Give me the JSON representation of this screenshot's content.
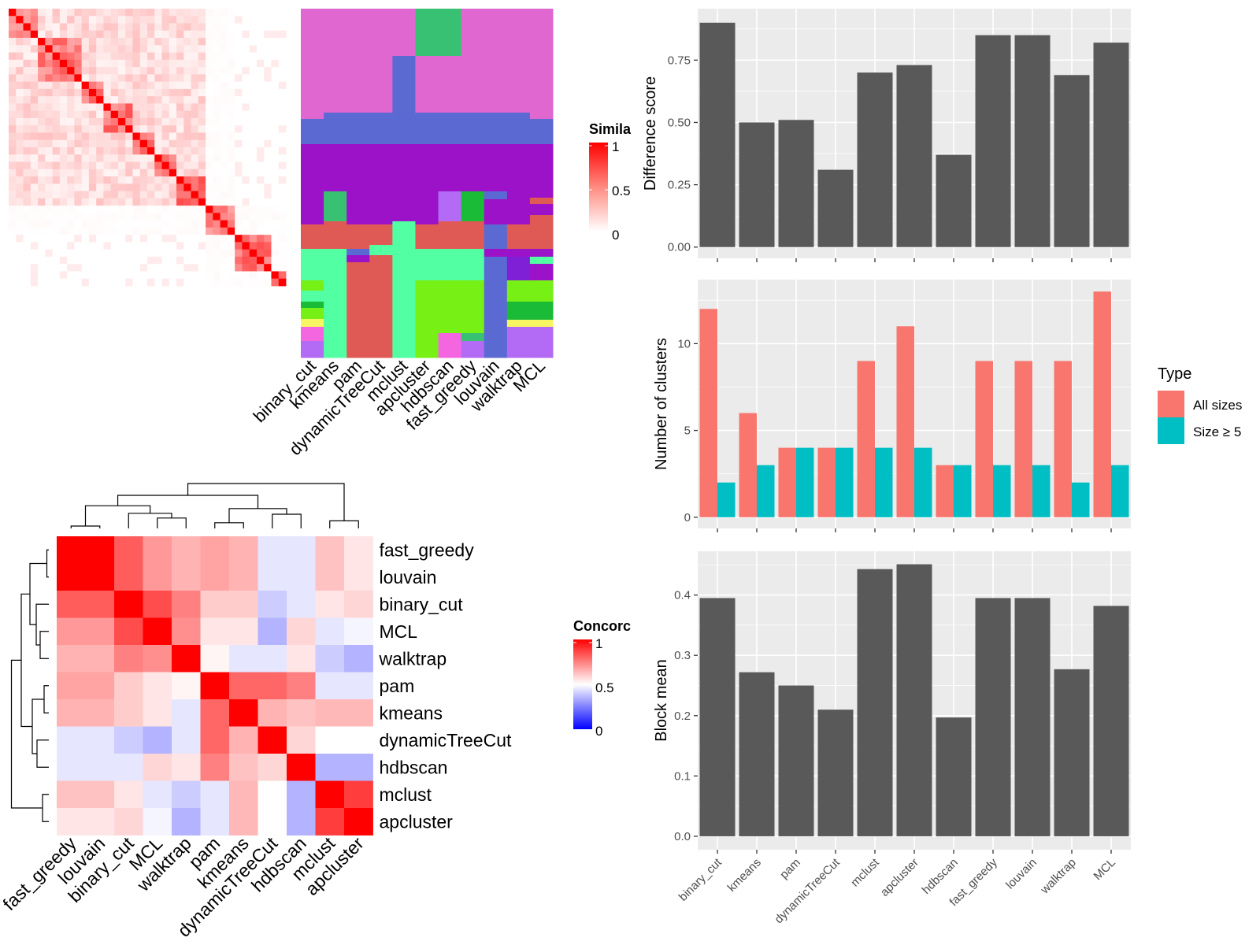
{
  "methods": [
    "binary_cut",
    "kmeans",
    "pam",
    "dynamicTreeCut",
    "mclust",
    "apcluster",
    "hdbscan",
    "fast_greedy",
    "louvain",
    "walktrap",
    "MCL"
  ],
  "colors": {
    "panel_bg": "#ebebeb",
    "grid": "#ffffff",
    "bar_dark": "#595959",
    "all_sizes": "#f8766d",
    "size_ge5": "#00bfc4",
    "heat_high": "#ff0000",
    "heat_mid": "#ffffff",
    "heat_low": "#0000ff"
  },
  "similarity_legend": {
    "title": "Simila",
    "ticks": [
      "1",
      "0.5",
      "0"
    ]
  },
  "concordance_legend": {
    "title": "Concorc",
    "ticks": [
      "1",
      "0.5",
      "0"
    ]
  },
  "top_heatmap": {
    "column_labels": [
      "binary_cut",
      "kmeans",
      "pam",
      "dynamicTreeCut",
      "mclust",
      "apcluster",
      "hdbscan",
      "fast_greedy",
      "louvain",
      "walktrap",
      "MCL"
    ],
    "n_items": 38
  },
  "concordance_heatmap": {
    "order": [
      "fast_greedy",
      "louvain",
      "binary_cut",
      "MCL",
      "walktrap",
      "pam",
      "kmeans",
      "dynamicTreeCut",
      "hdbscan",
      "mclust",
      "apcluster"
    ],
    "matrix": [
      [
        1.0,
        1.0,
        0.82,
        0.7,
        0.65,
        0.68,
        0.65,
        0.45,
        0.45,
        0.62,
        0.55
      ],
      [
        1.0,
        1.0,
        0.82,
        0.7,
        0.65,
        0.68,
        0.65,
        0.45,
        0.45,
        0.62,
        0.55
      ],
      [
        0.82,
        0.82,
        1.0,
        0.85,
        0.75,
        0.6,
        0.6,
        0.4,
        0.45,
        0.55,
        0.58
      ],
      [
        0.7,
        0.7,
        0.85,
        1.0,
        0.72,
        0.55,
        0.55,
        0.35,
        0.58,
        0.45,
        0.48
      ],
      [
        0.65,
        0.65,
        0.75,
        0.72,
        1.0,
        0.52,
        0.45,
        0.45,
        0.55,
        0.4,
        0.35
      ],
      [
        0.68,
        0.68,
        0.6,
        0.55,
        0.52,
        1.0,
        0.8,
        0.8,
        0.75,
        0.45,
        0.45
      ],
      [
        0.65,
        0.65,
        0.6,
        0.55,
        0.45,
        0.8,
        1.0,
        0.65,
        0.62,
        0.64,
        0.64
      ],
      [
        0.45,
        0.45,
        0.4,
        0.35,
        0.45,
        0.8,
        0.65,
        1.0,
        0.58,
        0.5,
        0.5
      ],
      [
        0.45,
        0.45,
        0.45,
        0.58,
        0.55,
        0.75,
        0.62,
        0.58,
        1.0,
        0.35,
        0.35
      ],
      [
        0.62,
        0.62,
        0.55,
        0.45,
        0.4,
        0.45,
        0.64,
        0.5,
        0.35,
        1.0,
        0.88
      ],
      [
        0.55,
        0.55,
        0.58,
        0.48,
        0.35,
        0.45,
        0.64,
        0.5,
        0.35,
        0.88,
        1.0
      ]
    ]
  },
  "chart_data": [
    {
      "type": "bar",
      "ylabel": "Difference score",
      "categories": [
        "binary_cut",
        "kmeans",
        "pam",
        "dynamicTreeCut",
        "mclust",
        "apcluster",
        "hdbscan",
        "fast_greedy",
        "louvain",
        "walktrap",
        "MCL"
      ],
      "values": [
        0.9,
        0.5,
        0.51,
        0.31,
        0.7,
        0.73,
        0.37,
        0.85,
        0.85,
        0.69,
        0.82
      ],
      "ylim": [
        0,
        0.95
      ],
      "yticks": [
        "0.00",
        "0.25",
        "0.50",
        "0.75"
      ]
    },
    {
      "type": "bar",
      "ylabel": "Number of clusters",
      "categories": [
        "binary_cut",
        "kmeans",
        "pam",
        "dynamicTreeCut",
        "mclust",
        "apcluster",
        "hdbscan",
        "fast_greedy",
        "louvain",
        "walktrap",
        "MCL"
      ],
      "series": [
        {
          "name": "All sizes",
          "values": [
            12,
            6,
            4,
            4,
            9,
            11,
            3,
            9,
            9,
            9,
            13
          ]
        },
        {
          "name": "Size ≥ 5",
          "values": [
            2,
            3,
            4,
            4,
            4,
            4,
            3,
            3,
            3,
            2,
            3
          ]
        }
      ],
      "ylim": [
        0,
        13.6
      ],
      "yticks": [
        "0",
        "5",
        "10"
      ],
      "legend": {
        "title": "Type",
        "position": "right"
      }
    },
    {
      "type": "bar",
      "ylabel": "Block mean",
      "categories": [
        "binary_cut",
        "kmeans",
        "pam",
        "dynamicTreeCut",
        "mclust",
        "apcluster",
        "hdbscan",
        "fast_greedy",
        "louvain",
        "walktrap",
        "MCL"
      ],
      "values": [
        0.395,
        0.272,
        0.25,
        0.21,
        0.443,
        0.451,
        0.197,
        0.395,
        0.395,
        0.277,
        0.382
      ],
      "ylim": [
        0,
        0.47
      ],
      "yticks": [
        "0.0",
        "0.1",
        "0.2",
        "0.3",
        "0.4"
      ]
    }
  ]
}
